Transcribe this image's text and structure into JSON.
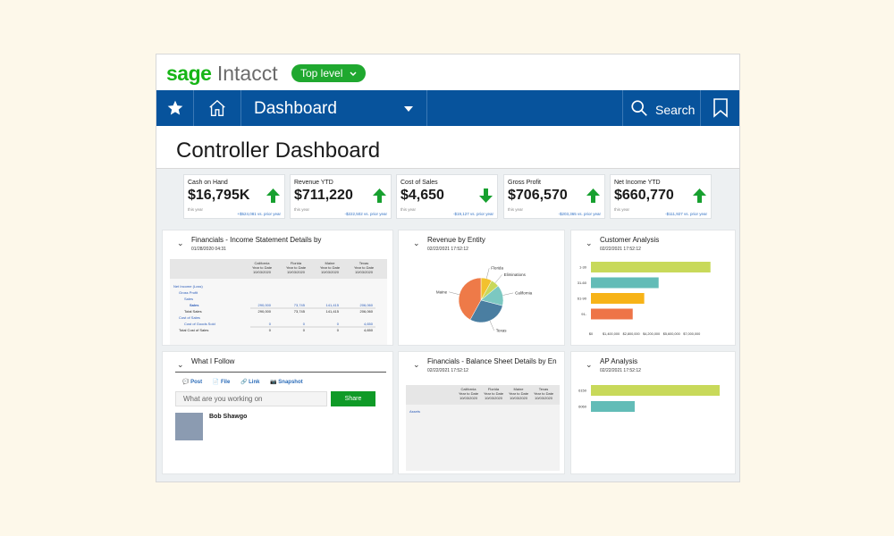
{
  "brand": {
    "sage": "sage",
    "intacct": "Intacct"
  },
  "level_selector": {
    "label": "Top level"
  },
  "nav": {
    "title": "Dashboard",
    "search_label": "Search"
  },
  "page_title": "Controller Dashboard",
  "kpis": [
    {
      "label": "Cash on Hand",
      "value": "$16,795K",
      "direction": "up",
      "period": "this year",
      "comparison": "+$524,081 vs. prior year"
    },
    {
      "label": "Revenue YTD",
      "value": "$711,220",
      "direction": "up",
      "period": "this year",
      "comparison": "-$222,502 vs. prior year"
    },
    {
      "label": "Cost of Sales",
      "value": "$4,650",
      "direction": "down",
      "period": "this year",
      "comparison": "-$19,127 vs. prior year"
    },
    {
      "label": "Gross Profit",
      "value": "$706,570",
      "direction": "up",
      "period": "this year",
      "comparison": "-$203,365 vs. prior year"
    },
    {
      "label": "Net Income YTD",
      "value": "$660,770",
      "direction": "up",
      "period": "this year",
      "comparison": "-$111,927 vs. prior year"
    }
  ],
  "income_card": {
    "title": "Financials - Income Statement Details by",
    "date": "01/28/2020 04:31",
    "columns": [
      [
        "California",
        "Year to Date",
        "10/03/2020"
      ],
      [
        "Florida",
        "Year to Date",
        "10/03/2020"
      ],
      [
        "Maine",
        "Year to Date",
        "10/03/2020"
      ],
      [
        "Texas",
        "Year to Date",
        "10/03/2020"
      ]
    ],
    "rows": [
      {
        "label": "Net Income (Loss)",
        "indent": 0,
        "link": true,
        "values": []
      },
      {
        "label": "Gross Profit",
        "indent": 1,
        "link": true,
        "values": []
      },
      {
        "label": "Sales",
        "indent": 2,
        "link": true,
        "values": []
      },
      {
        "label": "Sales",
        "indent": 3,
        "link": true,
        "bold": true,
        "values": [
          "290,000",
          "73,745",
          "141,415",
          "206,060"
        ]
      },
      {
        "label": "Total Sales",
        "indent": 2,
        "link": false,
        "values": [
          "290,000",
          "73,745",
          "141,415",
          "206,060"
        ]
      },
      {
        "label": "Cost of Sales",
        "indent": 1,
        "link": true,
        "values": []
      },
      {
        "label": "Cost of Goods Sold",
        "indent": 2,
        "link": true,
        "values": [
          "0",
          "0",
          "0",
          "4,650"
        ]
      },
      {
        "label": "Total Cost of Sales",
        "indent": 1,
        "link": false,
        "values": [
          "0",
          "0",
          "0",
          "4,650"
        ]
      }
    ]
  },
  "revenue_card": {
    "title": "Revenue by Entity",
    "date": "02/22/2021 17:52:12"
  },
  "customer_card": {
    "title": "Customer Analysis",
    "date": "02/22/2021 17:52:12"
  },
  "follow_card": {
    "title": "What I Follow",
    "actions": [
      "Post",
      "File",
      "Link",
      "Snapshot"
    ],
    "placeholder": "What are you working on",
    "share_label": "Share",
    "user_name": "Bob Shawgo"
  },
  "balance_card": {
    "title": "Financials - Balance Sheet Details by En",
    "date": "02/22/2021 17:52:12",
    "columns": [
      [
        "California",
        "Year to Date",
        "10/03/2020"
      ],
      [
        "Florida",
        "Year to Date",
        "10/03/2020"
      ],
      [
        "Maine",
        "Year to Date",
        "10/03/2020"
      ],
      [
        "Texas",
        "Year to Date",
        "10/03/2020"
      ]
    ],
    "first_row": "Assets"
  },
  "ap_card": {
    "title": "AP Analysis",
    "date": "02/22/2021 17:52:12"
  },
  "chart_data": [
    {
      "type": "pie",
      "title": "Revenue by Entity",
      "categories": [
        "Florida",
        "Eliminations",
        "California",
        "Texas",
        "Maine"
      ],
      "values": [
        8,
        6,
        15,
        29,
        42
      ],
      "colors": [
        "#f2c12e",
        "#c8d85a",
        "#7cc8c1",
        "#4a7ea1",
        "#ee7a48"
      ]
    },
    {
      "type": "bar",
      "orientation": "horizontal",
      "title": "Customer Analysis",
      "categories": [
        "1-30",
        "31-60",
        "61-90",
        "91-"
      ],
      "values": [
        8300000,
        4700000,
        3700000,
        2900000
      ],
      "colors": [
        "#c8d95a",
        "#62bcb7",
        "#f7b318",
        "#ee7447"
      ],
      "xticks": [
        "$0",
        "$1,400,000",
        "$2,800,000",
        "$4,200,000",
        "$5,600,000",
        "$7,000,000"
      ],
      "xlim": [
        0,
        9000000
      ]
    },
    {
      "type": "bar",
      "orientation": "horizontal",
      "title": "AP Analysis",
      "categories": [
        "6150",
        "6060"
      ],
      "values": [
        100,
        34
      ],
      "colors": [
        "#c8d95a",
        "#62bcb7"
      ]
    }
  ]
}
